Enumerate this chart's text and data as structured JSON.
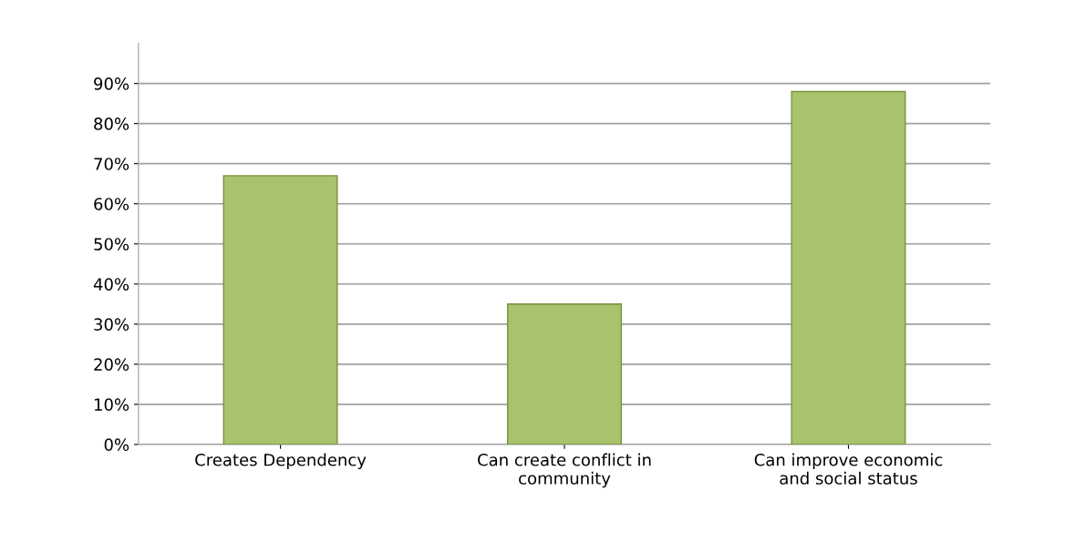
{
  "chart_data": {
    "type": "bar",
    "categories": [
      "Creates Dependency",
      "Can create conflict in\ncommunity",
      "Can improve economic\nand social status"
    ],
    "values": [
      67,
      35,
      88
    ],
    "color": "#a9c36c",
    "ylim": [
      0,
      100
    ],
    "yticks": [
      {
        "value": 0,
        "label": "0%"
      },
      {
        "value": 10,
        "label": "10%"
      },
      {
        "value": 20,
        "label": "20%"
      },
      {
        "value": 30,
        "label": "30%"
      },
      {
        "value": 40,
        "label": "40%"
      },
      {
        "value": 50,
        "label": "50%"
      },
      {
        "value": 60,
        "label": "60%"
      },
      {
        "value": 70,
        "label": "70%"
      },
      {
        "value": 80,
        "label": "80%"
      },
      {
        "value": 90,
        "label": "90%"
      }
    ],
    "grid": "y"
  }
}
